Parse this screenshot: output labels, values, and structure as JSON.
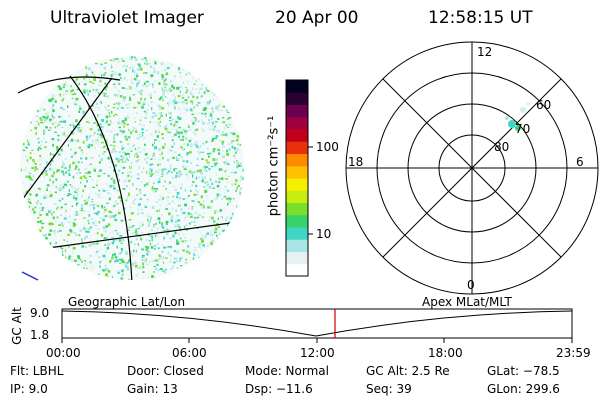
{
  "header": {
    "title": "Ultraviolet Imager",
    "date": "20 Apr 00",
    "time": "12:58:15 UT"
  },
  "colorbar": {
    "unit_label": "photon cm⁻²s⁻¹",
    "ticks": [
      "100",
      "10"
    ],
    "colors": [
      "#ffffff",
      "#e6f2f2",
      "#a8e6e6",
      "#3fd6c6",
      "#36d36a",
      "#7ade2a",
      "#c8ee10",
      "#f4f000",
      "#ffc000",
      "#ff8a00",
      "#e8300a",
      "#c2001e",
      "#a0003e",
      "#6a0050",
      "#2a0030",
      "#000020"
    ]
  },
  "polar": {
    "mlt_labels": {
      "top": "12",
      "bottom": "0",
      "left": "18",
      "right": "6"
    },
    "lat_labels": [
      "60",
      "70",
      "80"
    ]
  },
  "timeline": {
    "left_label": "Geographic Lat/Lon",
    "right_label": "Apex MLat/MLT",
    "y_axis_label": "GC Alt",
    "y_ticks": [
      "9.0",
      "1.8"
    ],
    "x_ticks": [
      "00:00",
      "06:00",
      "12:00",
      "18:00",
      "23:59"
    ],
    "marker_color": "#cc0000"
  },
  "footer": {
    "flt": "Flt: LBHL",
    "ip": "IP:  9.0",
    "door": "Door: Closed",
    "gain": "Gain: 13",
    "mode": "Mode: Normal",
    "dsp": "Dsp:  −11.6",
    "gcalt": "GC Alt: 2.5 Re",
    "seq": "Seq: 39",
    "glat": "GLat: −78.5",
    "glon": "GLon: 299.6"
  }
}
